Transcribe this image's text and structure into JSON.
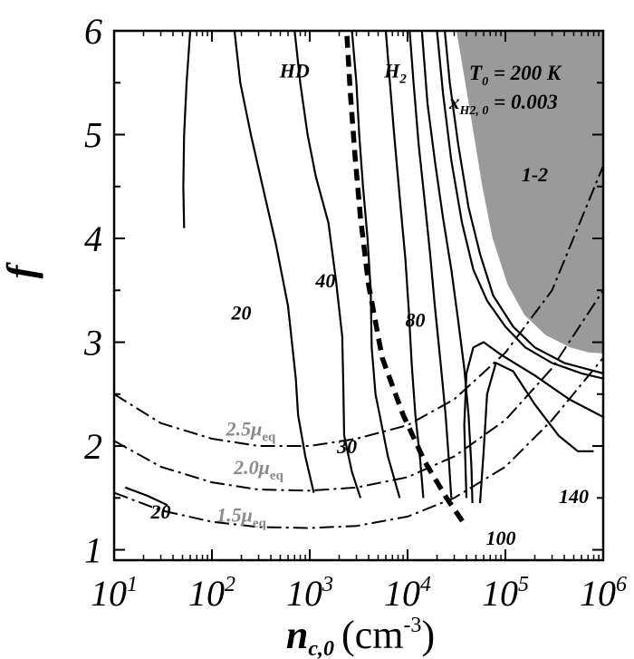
{
  "chart_data": {
    "type": "line",
    "x_axis": {
      "label": "n",
      "label_subscript": "c,0",
      "label_units_open": "(cm",
      "label_units_exp": "-3",
      "label_units_close": ")",
      "scale": "log",
      "range": [
        10,
        1000000
      ],
      "ticks": [
        {
          "base": "10",
          "exp": "1",
          "value": 10
        },
        {
          "base": "10",
          "exp": "2",
          "value": 100
        },
        {
          "base": "10",
          "exp": "3",
          "value": 1000
        },
        {
          "base": "10",
          "exp": "4",
          "value": 10000
        },
        {
          "base": "10",
          "exp": "5",
          "value": 100000
        },
        {
          "base": "10",
          "exp": "6",
          "value": 1000000
        }
      ]
    },
    "y_axis": {
      "label": "f",
      "scale": "linear",
      "range": [
        0.9,
        6
      ],
      "ticks": [
        "1",
        "2",
        "3",
        "4",
        "5",
        "6"
      ]
    },
    "parameters": {
      "line1_main": "T",
      "line1_sub": "0",
      "line1_rest": " = 200 K",
      "line2_main": "x",
      "line2_sub": "H2, 0",
      "line2_rest": " = 0.003"
    },
    "shaded_region": {
      "label": "1-2",
      "color": "#9a9a9a",
      "boundary": [
        [
          30000,
          6.0
        ],
        [
          40000,
          5.3
        ],
        [
          55000,
          4.5
        ],
        [
          70000,
          4.0
        ],
        [
          100000,
          3.55
        ],
        [
          150000,
          3.25
        ],
        [
          250000,
          3.05
        ],
        [
          450000,
          2.93
        ],
        [
          700000,
          2.88
        ],
        [
          1000000,
          2.87
        ]
      ]
    },
    "series": [
      {
        "style": "solid",
        "points": [
          [
            60,
            6.0
          ],
          [
            55,
            5.5
          ],
          [
            52,
            5.0
          ],
          [
            51,
            4.5
          ],
          [
            52,
            4.1
          ]
        ]
      },
      {
        "style": "solid",
        "points": [
          [
            170,
            6.0
          ],
          [
            195,
            5.5
          ],
          [
            250,
            5.0
          ],
          [
            330,
            4.5
          ],
          [
            450,
            3.95
          ],
          [
            600,
            3.35
          ],
          [
            720,
            2.65
          ],
          [
            760,
            2.3
          ],
          [
            900,
            1.9
          ],
          [
            1100,
            1.55
          ]
        ]
      },
      {
        "style": "solid",
        "points": [
          [
            700,
            6.0
          ],
          [
            800,
            5.5
          ],
          [
            950,
            5.0
          ],
          [
            1150,
            4.6
          ],
          [
            1550,
            4.15
          ],
          [
            1850,
            3.6
          ],
          [
            2150,
            3.05
          ],
          [
            2200,
            2.6
          ],
          [
            2250,
            2.1
          ],
          [
            2700,
            1.75
          ],
          [
            3300,
            1.5
          ]
        ]
      },
      {
        "style": "solid",
        "points": [
          [
            2700,
            6.0
          ],
          [
            3000,
            5.5
          ],
          [
            3200,
            5.0
          ],
          [
            3500,
            4.5
          ],
          [
            3900,
            4.0
          ],
          [
            4200,
            3.5
          ],
          [
            4300,
            2.95
          ],
          [
            4700,
            2.5
          ],
          [
            6300,
            1.9
          ],
          [
            8300,
            1.5
          ]
        ]
      },
      {
        "style": "solid",
        "points": [
          [
            6000,
            6.0
          ],
          [
            6600,
            5.5
          ],
          [
            7300,
            5.0
          ],
          [
            8300,
            4.4
          ],
          [
            9500,
            3.8
          ],
          [
            10300,
            3.3
          ],
          [
            11000,
            2.8
          ],
          [
            12000,
            2.3
          ],
          [
            13500,
            1.85
          ],
          [
            14500,
            1.5
          ]
        ]
      },
      {
        "style": "solid",
        "points": [
          [
            10500,
            6.0
          ],
          [
            11500,
            5.5
          ],
          [
            13000,
            4.9
          ],
          [
            15000,
            4.35
          ],
          [
            17000,
            3.85
          ],
          [
            19000,
            3.35
          ],
          [
            21500,
            2.85
          ],
          [
            24500,
            2.3
          ],
          [
            26500,
            1.85
          ],
          [
            28000,
            1.5
          ]
        ]
      },
      {
        "style": "solid",
        "points": [
          [
            14000,
            6.0
          ],
          [
            16000,
            5.3
          ],
          [
            19000,
            4.75
          ],
          [
            23000,
            4.2
          ],
          [
            28000,
            3.7
          ],
          [
            33000,
            3.2
          ],
          [
            38000,
            2.75
          ],
          [
            42000,
            2.3
          ],
          [
            45000,
            1.8
          ],
          [
            46000,
            1.45
          ]
        ]
      },
      {
        "style": "solid",
        "points": [
          [
            20000,
            6.0
          ],
          [
            23000,
            5.4
          ],
          [
            28000,
            4.75
          ],
          [
            36000,
            4.15
          ],
          [
            47000,
            3.7
          ],
          [
            65000,
            3.4
          ],
          [
            100000,
            3.15
          ],
          [
            160000,
            2.95
          ],
          [
            300000,
            2.8
          ],
          [
            600000,
            2.7
          ],
          [
            1000000,
            2.65
          ]
        ]
      },
      {
        "style": "solid",
        "points": [
          [
            24000,
            6.0
          ],
          [
            27000,
            5.5
          ],
          [
            33000,
            4.9
          ],
          [
            42000,
            4.3
          ],
          [
            55000,
            3.85
          ],
          [
            75000,
            3.45
          ],
          [
            120000,
            3.15
          ],
          [
            200000,
            2.95
          ],
          [
            400000,
            2.8
          ],
          [
            1000000,
            2.7
          ]
        ]
      },
      {
        "style": "solid",
        "points": [
          [
            40000,
            1.5
          ],
          [
            38000,
            2.2
          ],
          [
            40000,
            2.7
          ],
          [
            47000,
            2.95
          ],
          [
            60000,
            3.0
          ],
          [
            90000,
            2.88
          ],
          [
            200000,
            2.68
          ],
          [
            450000,
            2.45
          ],
          [
            1000000,
            2.28
          ]
        ]
      },
      {
        "style": "solid",
        "points": [
          [
            55000,
            1.45
          ],
          [
            60000,
            1.95
          ],
          [
            65000,
            2.5
          ],
          [
            80000,
            2.8
          ],
          [
            120000,
            2.72
          ],
          [
            200000,
            2.4
          ],
          [
            350000,
            2.1
          ],
          [
            550000,
            1.95
          ],
          [
            800000,
            1.95
          ]
        ]
      },
      {
        "style": "solid",
        "points": [
          [
            13,
            1.6
          ],
          [
            22,
            1.52
          ],
          [
            35,
            1.43
          ]
        ]
      },
      {
        "style": "dashed",
        "points": [
          [
            2400,
            5.95
          ],
          [
            2600,
            5.4
          ],
          [
            2900,
            4.8
          ],
          [
            3300,
            4.2
          ],
          [
            4000,
            3.55
          ],
          [
            5500,
            2.85
          ],
          [
            9000,
            2.3
          ],
          [
            15000,
            1.85
          ],
          [
            25000,
            1.5
          ],
          [
            40000,
            1.22
          ]
        ]
      },
      {
        "style": "dashdot",
        "points": [
          [
            10,
            2.5
          ],
          [
            30,
            2.22
          ],
          [
            100,
            2.07
          ],
          [
            300,
            2.0
          ],
          [
            1000,
            2.0
          ],
          [
            3000,
            2.07
          ],
          [
            10000,
            2.2
          ],
          [
            30000,
            2.45
          ],
          [
            100000,
            2.9
          ],
          [
            300000,
            3.5
          ],
          [
            1000000,
            4.7
          ]
        ]
      },
      {
        "style": "dashdot",
        "points": [
          [
            10,
            2.05
          ],
          [
            30,
            1.8
          ],
          [
            100,
            1.65
          ],
          [
            300,
            1.58
          ],
          [
            1000,
            1.57
          ],
          [
            3000,
            1.6
          ],
          [
            10000,
            1.7
          ],
          [
            30000,
            1.9
          ],
          [
            100000,
            2.25
          ],
          [
            300000,
            2.75
          ],
          [
            1000000,
            3.5
          ]
        ]
      },
      {
        "style": "dashdot",
        "points": [
          [
            10,
            1.55
          ],
          [
            30,
            1.38
          ],
          [
            100,
            1.27
          ],
          [
            300,
            1.22
          ],
          [
            1000,
            1.21
          ],
          [
            3000,
            1.23
          ],
          [
            10000,
            1.32
          ],
          [
            30000,
            1.5
          ],
          [
            100000,
            1.8
          ],
          [
            300000,
            2.25
          ],
          [
            1000000,
            2.85
          ]
        ]
      }
    ],
    "annotations": [
      {
        "text": "HD",
        "x": 700,
        "y": 5.55
      },
      {
        "text": "40",
        "x": 1450,
        "y": 3.53
      },
      {
        "text": "20",
        "x": 200,
        "y": 3.22
      },
      {
        "text": "30",
        "x": 2400,
        "y": 1.93
      },
      {
        "text": "80",
        "x": 12000,
        "y": 3.15
      },
      {
        "text": "1-2",
        "x": 200000,
        "y": 4.55
      },
      {
        "text": "140",
        "x": 500000,
        "y": 1.45
      },
      {
        "text": "100",
        "x": 90000,
        "y": 1.05
      },
      {
        "text": "20",
        "x": 30,
        "y": 1.3
      }
    ],
    "h2_annotation": {
      "main": "H",
      "sub": "2",
      "x": 7500,
      "y": 5.55
    },
    "mu_labels": [
      {
        "coef": "2.5",
        "sub": "eq",
        "x": 250,
        "y": 2.1
      },
      {
        "coef": "2.0",
        "sub": "eq",
        "x": 300,
        "y": 1.73
      },
      {
        "coef": "1.5",
        "sub": "eq",
        "x": 200,
        "y": 1.27
      }
    ]
  }
}
